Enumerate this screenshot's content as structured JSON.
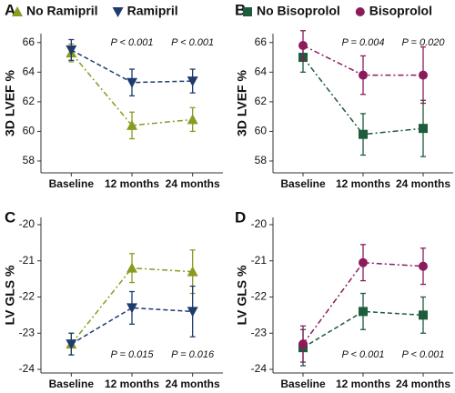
{
  "chart_data": [
    {
      "type": "line",
      "label": "A",
      "y_label": "3D LVEF %",
      "categories": [
        "Baseline",
        "12 months",
        "24 months"
      ],
      "ylim": [
        57.2,
        66.6
      ],
      "yticks": [
        58,
        60,
        62,
        64,
        66
      ],
      "annotations": [
        null,
        "P < 0.001",
        "P < 0.001"
      ],
      "annotation_position": "top",
      "series": [
        {
          "name": "No Ramipril",
          "color": "#8b9a22",
          "marker": "triangle-up",
          "linestyle": "dashdot",
          "values": [
            65.3,
            60.4,
            60.8
          ],
          "errors": [
            0.6,
            0.9,
            0.8
          ]
        },
        {
          "name": "Ramipril",
          "color": "#1f3b6e",
          "marker": "triangle-down",
          "linestyle": "dashed",
          "values": [
            65.5,
            63.3,
            63.4
          ],
          "errors": [
            0.7,
            0.9,
            0.8
          ]
        }
      ]
    },
    {
      "type": "line",
      "label": "B",
      "y_label": "3D LVEF %",
      "categories": [
        "Baseline",
        "12 months",
        "24 months"
      ],
      "ylim": [
        57.2,
        66.6
      ],
      "yticks": [
        58,
        60,
        62,
        64,
        66
      ],
      "annotations": [
        null,
        "P = 0.004",
        "P = 0.020"
      ],
      "annotation_position": "top",
      "series": [
        {
          "name": "No Bisoprolol",
          "color": "#1d5c3c",
          "marker": "square",
          "linestyle": "dashdot",
          "values": [
            65.0,
            59.8,
            60.2
          ],
          "errors": [
            1.0,
            1.4,
            1.9
          ]
        },
        {
          "name": "Bisoprolol",
          "color": "#8c1b5c",
          "marker": "circle",
          "linestyle": "dashdot",
          "values": [
            65.8,
            63.8,
            63.8
          ],
          "errors": [
            1.0,
            1.3,
            1.9
          ]
        }
      ]
    },
    {
      "type": "line",
      "label": "C",
      "y_label": "LV GLS %",
      "categories": [
        "Baseline",
        "12 months",
        "24 months"
      ],
      "ylim": [
        -24.1,
        -19.8
      ],
      "yticks": [
        -20,
        -21,
        -22,
        -23,
        -24
      ],
      "annotations": [
        null,
        "P = 0.015",
        "P = 0.016"
      ],
      "annotation_position": "bottom",
      "series": [
        {
          "name": "No Ramipril",
          "color": "#8b9a22",
          "marker": "triangle-up",
          "linestyle": "dashdot",
          "values": [
            -23.3,
            -21.2,
            -21.3
          ],
          "errors": [
            0.3,
            0.4,
            0.6
          ]
        },
        {
          "name": "Ramipril",
          "color": "#1f3b6e",
          "marker": "triangle-down",
          "linestyle": "dashed",
          "values": [
            -23.3,
            -22.3,
            -22.4
          ],
          "errors": [
            0.3,
            0.45,
            0.7
          ]
        }
      ]
    },
    {
      "type": "line",
      "label": "D",
      "y_label": "LV GLS %",
      "categories": [
        "Baseline",
        "12 months",
        "24 months"
      ],
      "ylim": [
        -24.1,
        -19.8
      ],
      "yticks": [
        -20,
        -21,
        -22,
        -23,
        -24
      ],
      "annotations": [
        null,
        "P < 0.001",
        "P < 0.001"
      ],
      "annotation_position": "bottom",
      "series": [
        {
          "name": "No Bisoprolol",
          "color": "#1d5c3c",
          "marker": "square",
          "linestyle": "dashed",
          "values": [
            -23.4,
            -22.4,
            -22.5
          ],
          "errors": [
            0.5,
            0.5,
            0.5
          ]
        },
        {
          "name": "Bisoprolol",
          "color": "#8c1b5c",
          "marker": "circle",
          "linestyle": "dashdot",
          "values": [
            -23.3,
            -21.05,
            -21.15
          ],
          "errors": [
            0.5,
            0.5,
            0.5
          ]
        }
      ]
    }
  ]
}
